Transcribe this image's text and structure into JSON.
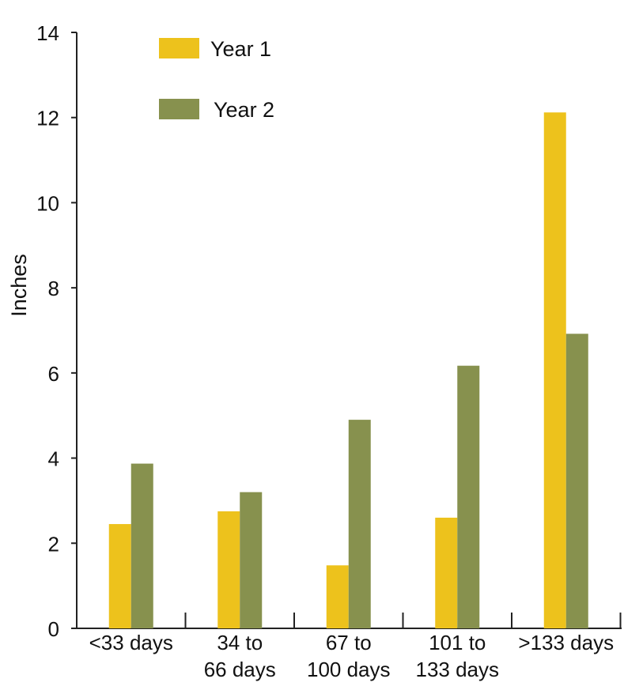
{
  "chart_data": {
    "type": "bar",
    "title": "",
    "xlabel": "",
    "ylabel": "Inches",
    "ylim": [
      0,
      14
    ],
    "yticks": [
      0,
      2,
      4,
      6,
      8,
      10,
      12,
      14
    ],
    "grid": false,
    "legend_position": "top-left",
    "categories": [
      [
        "<33 days"
      ],
      [
        "34 to",
        "66 days"
      ],
      [
        "67 to",
        "100 days"
      ],
      [
        "101 to",
        "133 days"
      ],
      [
        ">133 days"
      ]
    ],
    "series": [
      {
        "name": "Year 1",
        "color": "#EDC21C",
        "values": [
          2.45,
          2.75,
          1.48,
          2.6,
          12.12
        ]
      },
      {
        "name": "Year 2",
        "color": "#87914E",
        "values": [
          3.87,
          3.2,
          4.9,
          6.17,
          6.92
        ]
      }
    ]
  }
}
